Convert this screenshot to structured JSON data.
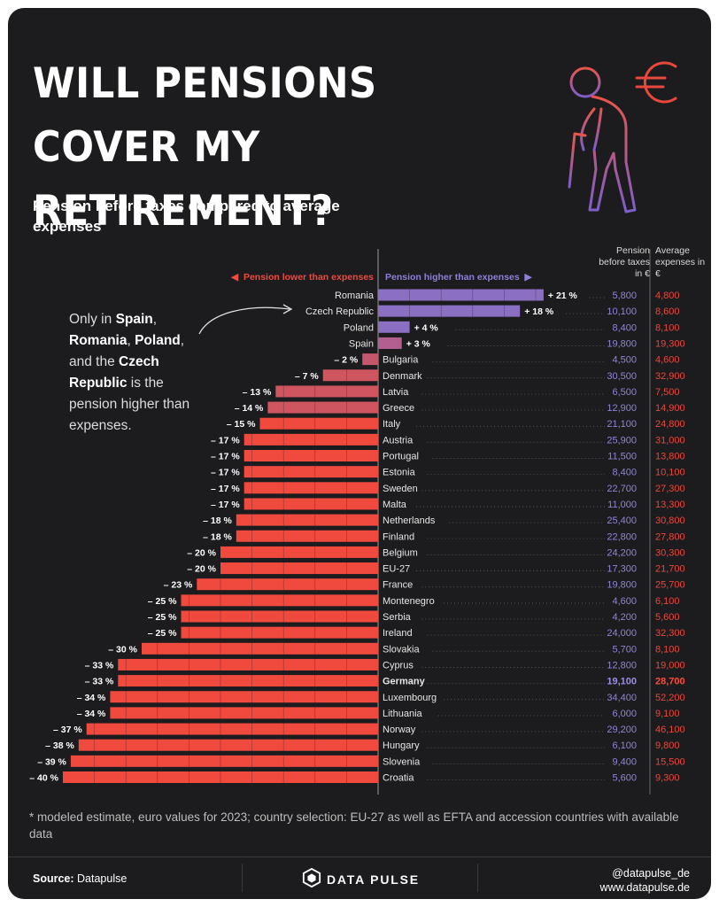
{
  "title": "WILL PENSIONS COVER MY RETIREMENT?",
  "subtitle": "Pension before taxes compared to average expenses",
  "legend": {
    "lower": "Pension lower than expenses",
    "higher": "Pension higher than expenses"
  },
  "columns": {
    "pension": "Pension before taxes in €",
    "expenses": "Average expenses in €"
  },
  "note": {
    "prefix": "Only in ",
    "c1": "Spain",
    "sep1": ", ",
    "c2": "Romania",
    "sep2": ", ",
    "c3": "Poland",
    "sep3": ", and the ",
    "c4": "Czech Republic",
    "suffix": " is the pension higher than expenses."
  },
  "footnote": "* modeled estimate, euro values for 2023; country selection: EU-27 as well as EFTA and accession countries with available data",
  "footer": {
    "source_label": "Source:",
    "source_value": "Datapulse",
    "brand": "DATA PULSE",
    "handle": "@datapulse_de",
    "website": "www.datapulse.de"
  },
  "colors": {
    "background": "#1c1c1e",
    "positive_bar": "#8a6fc2",
    "negative_bar": "#f0493e",
    "pension_text": "#8f85d6",
    "expenses_text": "#e8473d"
  },
  "icon": "elderly-person-with-cane-icon",
  "currency_icon": "euro-sign-icon",
  "chart_data": {
    "type": "bar",
    "orientation": "horizontal",
    "highlight": "Germany",
    "categories": [
      "Romania",
      "Czech Republic",
      "Poland",
      "Spain",
      "Bulgaria",
      "Denmark",
      "Latvia",
      "Greece",
      "Italy",
      "Austria",
      "Portugal",
      "Estonia",
      "Sweden",
      "Malta",
      "Netherlands",
      "Finland",
      "Belgium",
      "EU-27",
      "France",
      "Montenegro",
      "Serbia",
      "Ireland",
      "Slovakia",
      "Cyprus",
      "Germany",
      "Luxembourg",
      "Lithuania",
      "Norway",
      "Hungary",
      "Slovenia",
      "Croatia"
    ],
    "values": [
      21,
      18,
      4,
      3,
      -2,
      -7,
      -13,
      -14,
      -15,
      -17,
      -17,
      -17,
      -17,
      -17,
      -18,
      -18,
      -20,
      -20,
      -23,
      -25,
      -25,
      -25,
      -30,
      -33,
      -33,
      -34,
      -34,
      -37,
      -38,
      -39,
      -40
    ],
    "labels": [
      "+ 21 %",
      "+ 18 %",
      "+ 4 %",
      "+ 3 %",
      "– 2 %",
      "– 7 %",
      "– 13 %",
      "– 14 %",
      "– 15 %",
      "– 17 %",
      "– 17 %",
      "– 17 %",
      "– 17 %",
      "– 17 %",
      "– 18 %",
      "– 18 %",
      "– 20 %",
      "– 20 %",
      "– 23 %",
      "– 25 %",
      "– 25 %",
      "– 25 %",
      "– 30 %",
      "– 33 %",
      "– 33 %",
      "– 34 %",
      "– 34 %",
      "– 37 %",
      "– 38 %",
      "– 39 %",
      "– 40 %"
    ],
    "pension": [
      "5,800",
      "10,100",
      "8,400",
      "19,800",
      "4,500",
      "30,500",
      "6,500",
      "12,900",
      "21,100",
      "25,900",
      "11,500",
      "8,400",
      "22,700",
      "11,000",
      "25,400",
      "22,800",
      "24,200",
      "17,300",
      "19,800",
      "4,600",
      "4,200",
      "24,000",
      "5,700",
      "12,800",
      "19,100",
      "34,400",
      "6,000",
      "29,200",
      "6,100",
      "9,400",
      "5,600"
    ],
    "expenses": [
      "4,800",
      "8,600",
      "8,100",
      "19,300",
      "4,600",
      "32,900",
      "7,500",
      "14,900",
      "24,800",
      "31,000",
      "13,800",
      "10,100",
      "27,300",
      "13,300",
      "30,800",
      "27,800",
      "30,300",
      "21,700",
      "25,700",
      "6,100",
      "5,600",
      "32,300",
      "8,100",
      "19,000",
      "28,700",
      "52,200",
      "9,100",
      "46,100",
      "9,800",
      "15,500",
      "9,300"
    ]
  }
}
